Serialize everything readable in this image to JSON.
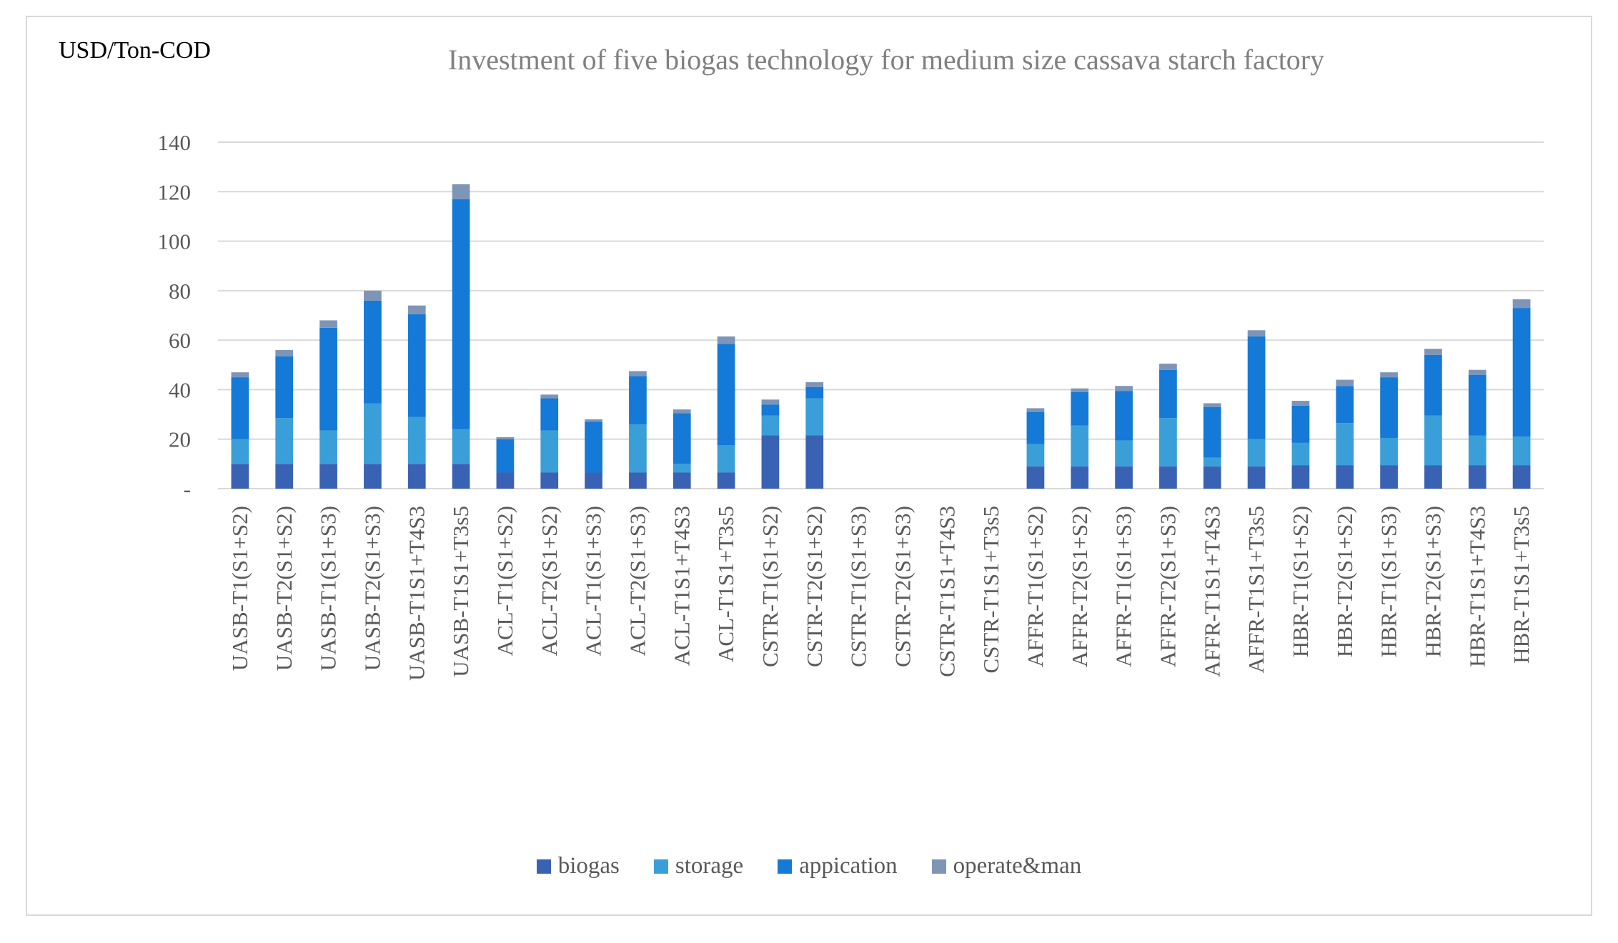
{
  "chart_data": {
    "type": "bar",
    "stacked": true,
    "title": "Investment of five biogas technology for medium size cassava starch factory",
    "ylabel": "USD/Ton-COD",
    "xlabel": "",
    "ylim": [
      0,
      140
    ],
    "yticks": [
      0,
      20,
      40,
      60,
      80,
      100,
      120,
      140
    ],
    "ytick_labels": [
      "-",
      "20",
      "40",
      "60",
      "80",
      "100",
      "120",
      "140"
    ],
    "grid": true,
    "legend_position": "bottom",
    "categories": [
      "UASB-T1(S1+S2)",
      "UASB-T2(S1+S2)",
      "UASB-T1(S1+S3)",
      "UASB-T2(S1+S3)",
      "UASB-T1S1+T4S3",
      "UASB-T1S1+T3s5",
      "ACL-T1(S1+S2)",
      "ACL-T2(S1+S2)",
      "ACL-T1(S1+S3)",
      "ACL-T2(S1+S3)",
      "ACL-T1S1+T4S3",
      "ACL-T1S1+T3s5",
      "CSTR-T1(S1+S2)",
      "CSTR-T2(S1+S2)",
      "CSTR-T1(S1+S3)",
      "CSTR-T2(S1+S3)",
      "CSTR-T1S1+T4S3",
      "CSTR-T1S1+T3s5",
      "AFFR-T1(S1+S2)",
      "AFFR-T2(S1+S2)",
      "AFFR-T1(S1+S3)",
      "AFFR-T2(S1+S3)",
      "AFFR-T1S1+T4S3",
      "AFFR-T1S1+T3s5",
      "HBR-T1(S1+S2)",
      "HBR-T2(S1+S2)",
      "HBR-T1(S1+S3)",
      "HBR-T2(S1+S3)",
      "HBR-T1S1+T4S3",
      "HBR-T1S1+T3s5"
    ],
    "series": [
      {
        "name": "biogas",
        "color": "#3a62b4",
        "values": [
          10,
          10,
          10,
          10,
          10,
          10,
          6.5,
          6.5,
          6.5,
          6.5,
          6.5,
          6.5,
          21.5,
          21.5,
          0,
          0,
          0,
          0,
          9,
          9,
          9,
          9,
          9,
          9,
          9.5,
          9.5,
          9.5,
          9.5,
          9.5,
          9.5
        ]
      },
      {
        "name": "storage",
        "color": "#3a9fd8",
        "values": [
          10,
          18.5,
          13.5,
          24.5,
          19,
          14,
          0,
          17,
          0,
          19.5,
          3.5,
          11,
          8,
          15,
          0,
          0,
          0,
          0,
          9,
          16.5,
          10.5,
          19.5,
          3.5,
          11,
          9,
          17,
          11,
          20,
          12,
          11.5
        ]
      },
      {
        "name": "appication",
        "color": "#1479d7",
        "values": [
          25,
          25,
          41.5,
          41.5,
          41.5,
          93,
          13.5,
          13,
          20.5,
          19.5,
          20.5,
          41,
          4.5,
          4.5,
          0,
          0,
          0,
          0,
          13,
          13.5,
          20,
          19.5,
          20.5,
          41.5,
          15,
          15,
          24.5,
          24.5,
          24.5,
          52
        ]
      },
      {
        "name": "operate&man",
        "color": "#7e95b5",
        "values": [
          2,
          2.5,
          3,
          4,
          3.5,
          6,
          0.8,
          1.5,
          1,
          2,
          1.5,
          3,
          2,
          2,
          0,
          0,
          0,
          0,
          1.5,
          1.5,
          2,
          2.5,
          1.5,
          2.5,
          2,
          2.5,
          2,
          2.5,
          2,
          3.5
        ]
      }
    ]
  }
}
